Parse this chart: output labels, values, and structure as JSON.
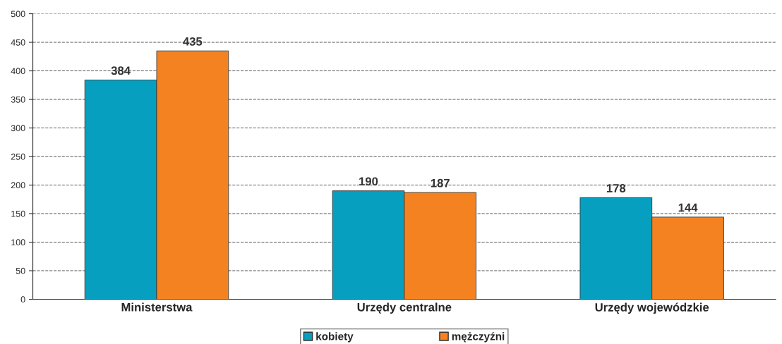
{
  "chart_data": {
    "type": "bar",
    "categories": [
      "Ministerstwa",
      "Urzędy centralne",
      "Urzędy wojewódzkie"
    ],
    "series": [
      {
        "name": "kobiety",
        "color": "#079fbf",
        "values": [
          384,
          190,
          178
        ]
      },
      {
        "name": "mężczyźni",
        "color": "#f58220",
        "values": [
          435,
          187,
          144
        ]
      }
    ],
    "ylim": [
      0,
      500
    ],
    "yticks": [
      0,
      50,
      100,
      150,
      200,
      250,
      300,
      350,
      400,
      450,
      500
    ],
    "grid": "y",
    "line_style": "dashed",
    "legend": "bottom",
    "data_labels": true
  }
}
